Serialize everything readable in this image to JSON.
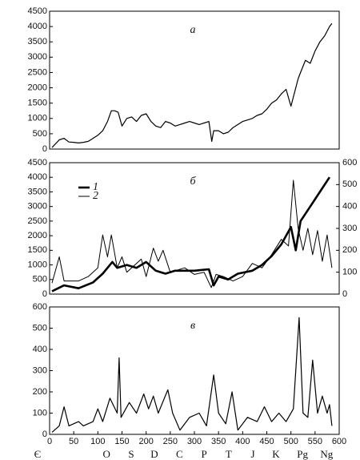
{
  "chart_data": [
    {
      "type": "line",
      "annotation": "а",
      "xlim": [
        0,
        600
      ],
      "ylim": [
        0,
        4500
      ],
      "yticks": [
        0,
        500,
        1000,
        1500,
        2000,
        2500,
        3000,
        3500,
        4000,
        4500
      ],
      "series": [
        {
          "color": "#000000",
          "linewidth": 1.2,
          "x": [
            5,
            20,
            30,
            40,
            50,
            60,
            70,
            80,
            90,
            100,
            110,
            120,
            128,
            135,
            142,
            150,
            160,
            170,
            180,
            190,
            200,
            210,
            220,
            230,
            240,
            250,
            260,
            270,
            280,
            290,
            300,
            310,
            320,
            330,
            336,
            340,
            350,
            360,
            370,
            380,
            390,
            400,
            410,
            420,
            430,
            440,
            450,
            460,
            470,
            480,
            490,
            500,
            510,
            515,
            520,
            530,
            540,
            550,
            560,
            570,
            580,
            585
          ],
          "values": [
            50,
            300,
            350,
            230,
            220,
            200,
            220,
            250,
            350,
            450,
            600,
            900,
            1250,
            1250,
            1200,
            750,
            1000,
            1050,
            900,
            1100,
            1150,
            900,
            750,
            700,
            900,
            850,
            750,
            800,
            850,
            900,
            850,
            800,
            850,
            900,
            250,
            600,
            600,
            500,
            550,
            700,
            800,
            900,
            950,
            1000,
            1100,
            1150,
            1300,
            1500,
            1600,
            1800,
            1950,
            1400,
            2000,
            2300,
            2500,
            2900,
            2800,
            3200,
            3500,
            3700,
            4000,
            4100
          ]
        }
      ]
    },
    {
      "type": "line",
      "annotation": "б",
      "legend": "upper left",
      "xlim": [
        0,
        600
      ],
      "ylim": [
        0,
        4500
      ],
      "yticks": [
        0,
        500,
        1000,
        1500,
        2000,
        2500,
        3000,
        3500,
        4000,
        4500
      ],
      "y2lim": [
        0,
        600
      ],
      "y2ticks": [
        0,
        100,
        200,
        300,
        400,
        500,
        600
      ],
      "series": [
        {
          "name": "1",
          "color": "#000000",
          "linewidth": 2.6,
          "x": [
            5,
            30,
            60,
            90,
            110,
            130,
            140,
            160,
            180,
            200,
            220,
            240,
            260,
            300,
            330,
            340,
            350,
            370,
            390,
            420,
            440,
            460,
            480,
            500,
            510,
            520,
            540,
            560,
            580
          ],
          "values": [
            100,
            300,
            200,
            400,
            700,
            1100,
            900,
            1000,
            900,
            1100,
            800,
            700,
            800,
            800,
            850,
            300,
            600,
            500,
            700,
            800,
            1000,
            1300,
            1700,
            2300,
            1500,
            2500,
            3000,
            3500,
            4000
          ]
        },
        {
          "name": "2",
          "color": "#000000",
          "linewidth": 1,
          "axis": "y2",
          "x": [
            5,
            20,
            30,
            60,
            80,
            100,
            110,
            120,
            128,
            140,
            150,
            160,
            180,
            190,
            200,
            215,
            225,
            235,
            250,
            280,
            300,
            320,
            335,
            345,
            360,
            380,
            400,
            420,
            440,
            460,
            480,
            495,
            505,
            515,
            525,
            535,
            545,
            555,
            565,
            575,
            585
          ],
          "values": [
            50,
            170,
            60,
            60,
            80,
            120,
            270,
            170,
            270,
            120,
            170,
            100,
            140,
            160,
            80,
            210,
            150,
            200,
            100,
            120,
            90,
            100,
            30,
            90,
            80,
            60,
            80,
            140,
            120,
            180,
            250,
            220,
            520,
            300,
            200,
            300,
            180,
            290,
            150,
            270,
            120
          ]
        }
      ]
    },
    {
      "type": "line",
      "annotation": "в",
      "xlim": [
        0,
        600
      ],
      "xticks": [
        0,
        50,
        100,
        150,
        200,
        250,
        300,
        350,
        400,
        450,
        500,
        550,
        600
      ],
      "ylim": [
        0,
        600
      ],
      "yticks": [
        0,
        100,
        200,
        300,
        400,
        500,
        600
      ],
      "period_labels": [
        {
          "value": -25,
          "label": "Є"
        },
        {
          "value": 118,
          "label": "O"
        },
        {
          "value": 169,
          "label": "S"
        },
        {
          "value": 217,
          "label": "D"
        },
        {
          "value": 269,
          "label": "C"
        },
        {
          "value": 320,
          "label": "P"
        },
        {
          "value": 371,
          "label": "T"
        },
        {
          "value": 421,
          "label": "J"
        },
        {
          "value": 469,
          "label": "K"
        },
        {
          "value": 524,
          "label": "Pg"
        },
        {
          "value": 574,
          "label": "Ng"
        }
      ],
      "series": [
        {
          "color": "#000000",
          "linewidth": 1.2,
          "x": [
            5,
            20,
            30,
            40,
            60,
            70,
            90,
            100,
            110,
            125,
            140,
            144,
            148,
            165,
            180,
            195,
            205,
            215,
            225,
            245,
            255,
            270,
            290,
            310,
            325,
            340,
            350,
            365,
            378,
            390,
            410,
            430,
            445,
            460,
            475,
            490,
            505,
            517,
            525,
            535,
            545,
            555,
            565,
            575,
            580,
            585
          ],
          "values": [
            10,
            40,
            130,
            40,
            60,
            40,
            60,
            120,
            60,
            170,
            100,
            360,
            80,
            150,
            100,
            190,
            120,
            180,
            100,
            210,
            100,
            20,
            80,
            100,
            40,
            280,
            100,
            50,
            200,
            20,
            80,
            60,
            130,
            60,
            100,
            60,
            120,
            550,
            100,
            80,
            350,
            100,
            180,
            100,
            140,
            40
          ]
        }
      ]
    }
  ]
}
